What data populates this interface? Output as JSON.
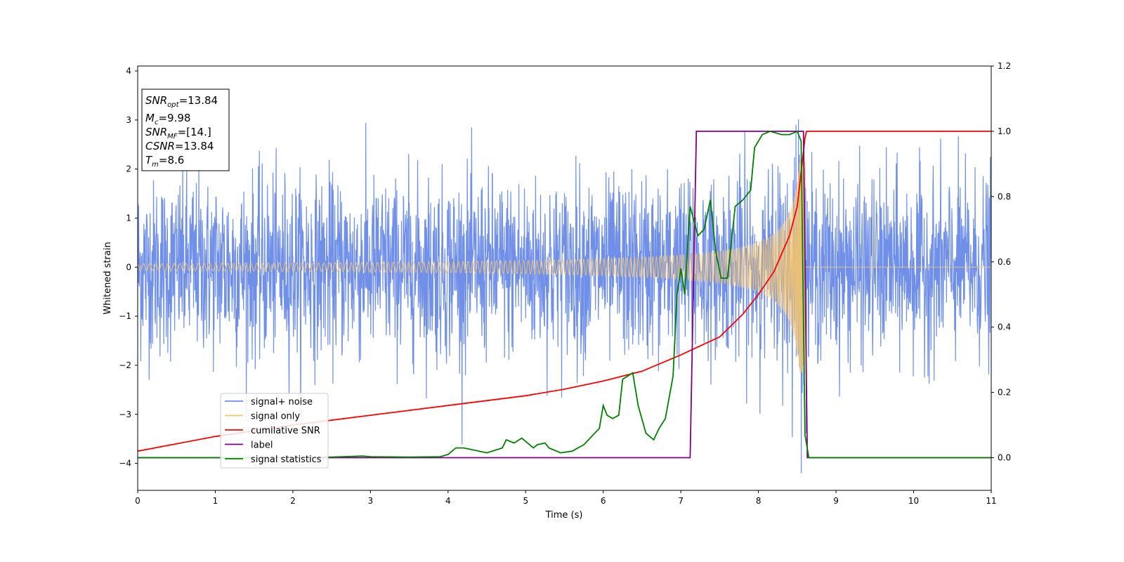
{
  "chart_data": {
    "type": "line",
    "title": "",
    "xlabel": "Time (s)",
    "ylabel": "Whitened strain",
    "xlim": [
      0,
      11
    ],
    "ylim_left": [
      -4.55,
      4.1
    ],
    "ylim_right": [
      -0.1,
      1.2
    ],
    "x_ticks": [
      0,
      1,
      2,
      3,
      4,
      5,
      6,
      7,
      8,
      9,
      10,
      11
    ],
    "y_ticks_left": [
      -4,
      -3,
      -2,
      -1,
      0,
      1,
      2,
      3,
      4
    ],
    "y_ticks_right": [
      0.0,
      0.2,
      0.4,
      0.6,
      0.8,
      1.0,
      1.2
    ],
    "y_tick_labels_right": [
      "0.0",
      "0.2",
      "0.4",
      "0.6",
      "0.8",
      "1.0",
      "1.2"
    ],
    "grid": false,
    "legend_position": "lower-left",
    "info_box": {
      "position": "top-left",
      "lines": [
        {
          "name": "SNR",
          "sub": "opt",
          "value": "=13.84"
        },
        {
          "name": "M",
          "sub": "c",
          "value": "=9.98"
        },
        {
          "name": "SNR",
          "sub": "MF",
          "value": "=[14.]"
        },
        {
          "name": "CSNR",
          "sub": "",
          "value": "=13.84"
        },
        {
          "name": "T",
          "sub": "m",
          "value": "=8.6"
        }
      ]
    },
    "series": [
      {
        "name": "signal+ noise",
        "axis": "left",
        "color": "#6f8fe8",
        "description_of_shape": "dense noise with std about 0.9 plus chirp",
        "noise_std": 0.9,
        "sample_spacing": 0.004
      },
      {
        "name": "signal only",
        "axis": "left",
        "color": "#f5c46a",
        "description_of_shape": "chirp growing in amplitude until merger then zero",
        "chirp_start_amplitude": 0.04,
        "chirp_peak_amplitude": 2.2,
        "merger_time": 8.6
      },
      {
        "name": "cumilative SNR",
        "axis": "right",
        "color": "#ff0000",
        "points": [
          [
            0,
            0.02
          ],
          [
            1,
            0.065
          ],
          [
            2,
            0.1
          ],
          [
            3,
            0.13
          ],
          [
            4,
            0.16
          ],
          [
            5,
            0.19
          ],
          [
            5.5,
            0.21
          ],
          [
            6,
            0.235
          ],
          [
            6.5,
            0.265
          ],
          [
            7,
            0.315
          ],
          [
            7.5,
            0.37
          ],
          [
            7.8,
            0.44
          ],
          [
            8.0,
            0.5
          ],
          [
            8.2,
            0.57
          ],
          [
            8.4,
            0.68
          ],
          [
            8.5,
            0.77
          ],
          [
            8.6,
            0.98
          ],
          [
            8.62,
            1.0
          ],
          [
            11,
            1.0
          ]
        ]
      },
      {
        "name": "label",
        "axis": "right",
        "color": "#800080",
        "points": [
          [
            0,
            0.0
          ],
          [
            7.12,
            0.0
          ],
          [
            7.2,
            1.0
          ],
          [
            8.58,
            1.0
          ],
          [
            8.63,
            0.0
          ],
          [
            11,
            0.0
          ]
        ]
      },
      {
        "name": "signal statistics",
        "axis": "right",
        "color": "#008000",
        "points": [
          [
            0,
            0.0
          ],
          [
            0.5,
            0.0
          ],
          [
            1,
            0.0
          ],
          [
            1.5,
            0.0
          ],
          [
            2,
            0.0
          ],
          [
            2.5,
            0.002
          ],
          [
            2.9,
            0.005
          ],
          [
            3.0,
            0.003
          ],
          [
            3.5,
            0.002
          ],
          [
            3.9,
            0.003
          ],
          [
            4.0,
            0.01
          ],
          [
            4.1,
            0.03
          ],
          [
            4.2,
            0.03
          ],
          [
            4.3,
            0.025
          ],
          [
            4.5,
            0.015
          ],
          [
            4.7,
            0.03
          ],
          [
            4.75,
            0.055
          ],
          [
            4.85,
            0.045
          ],
          [
            4.95,
            0.06
          ],
          [
            5.1,
            0.03
          ],
          [
            5.15,
            0.04
          ],
          [
            5.25,
            0.045
          ],
          [
            5.3,
            0.03
          ],
          [
            5.45,
            0.015
          ],
          [
            5.6,
            0.02
          ],
          [
            5.75,
            0.04
          ],
          [
            5.95,
            0.09
          ],
          [
            6.0,
            0.16
          ],
          [
            6.05,
            0.13
          ],
          [
            6.12,
            0.12
          ],
          [
            6.2,
            0.13
          ],
          [
            6.25,
            0.24
          ],
          [
            6.38,
            0.26
          ],
          [
            6.45,
            0.16
          ],
          [
            6.55,
            0.075
          ],
          [
            6.65,
            0.055
          ],
          [
            6.72,
            0.09
          ],
          [
            6.8,
            0.12
          ],
          [
            6.9,
            0.25
          ],
          [
            6.95,
            0.5
          ],
          [
            7.0,
            0.58
          ],
          [
            7.05,
            0.5
          ],
          [
            7.12,
            0.77
          ],
          [
            7.22,
            0.68
          ],
          [
            7.3,
            0.7
          ],
          [
            7.38,
            0.79
          ],
          [
            7.45,
            0.63
          ],
          [
            7.52,
            0.55
          ],
          [
            7.6,
            0.55
          ],
          [
            7.7,
            0.77
          ],
          [
            7.8,
            0.79
          ],
          [
            7.9,
            0.82
          ],
          [
            7.95,
            0.95
          ],
          [
            8.05,
            0.99
          ],
          [
            8.15,
            1.0
          ],
          [
            8.3,
            0.99
          ],
          [
            8.4,
            0.99
          ],
          [
            8.5,
            1.0
          ],
          [
            8.55,
            0.97
          ],
          [
            8.6,
            0.07
          ],
          [
            8.65,
            0.0
          ],
          [
            11,
            0.0
          ]
        ]
      }
    ]
  }
}
